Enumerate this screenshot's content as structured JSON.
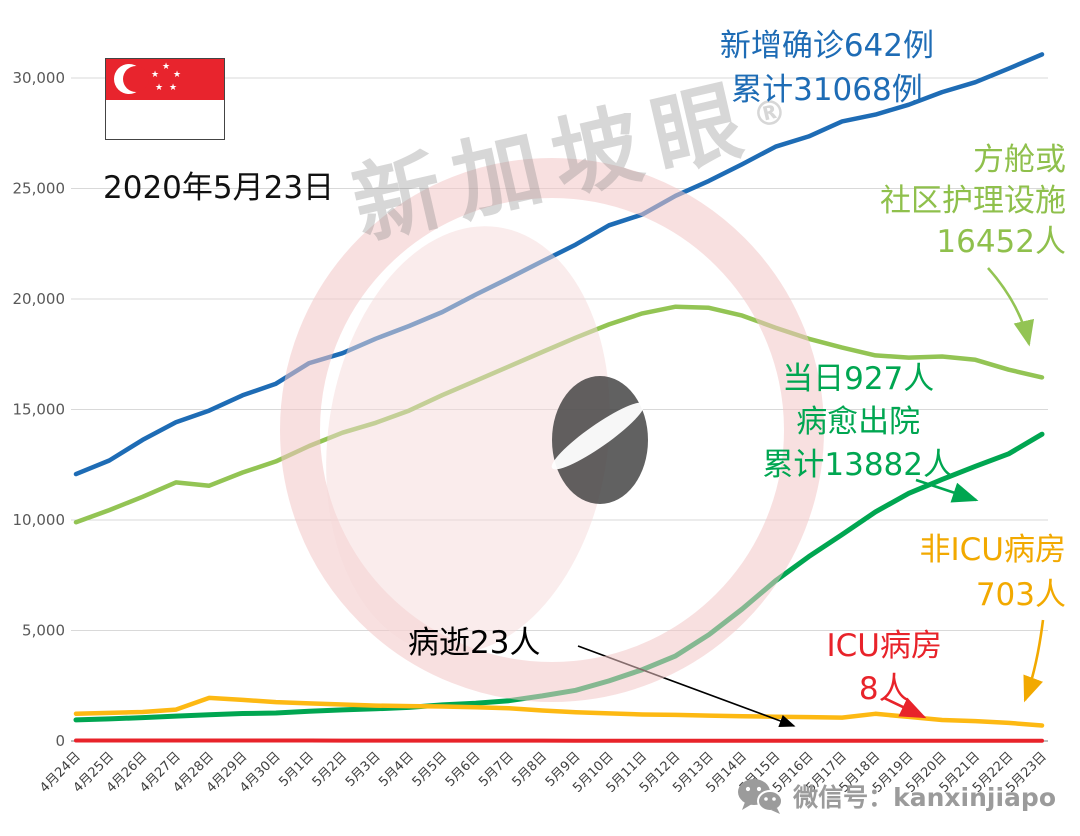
{
  "meta": {
    "date_label": "2020年5月23日",
    "watermark_text": "新加坡眼",
    "watermark_reg": "®",
    "footer_text": "微信号：kanxinjiapo"
  },
  "annotations": {
    "confirmed_line1": "新增确诊642例",
    "confirmed_line2": "累计31068例",
    "community_line1": "方舱或",
    "community_line2": "社区护理设施",
    "community_line3": "16452人",
    "recovered_line1": "当日927人",
    "recovered_line2": "病愈出院",
    "recovered_line3": "累计13882人",
    "non_icu_line1": "非ICU病房",
    "non_icu_line2": "703人",
    "icu_line1": "ICU病房",
    "icu_line2": "8人",
    "deaths_label": "病逝23人"
  },
  "colors": {
    "confirmed": "#1e6cb5",
    "community": "#93c454",
    "recovered": "#00a651",
    "non_icu": "#fdb913",
    "icu": "#e8232a",
    "deaths": "#000000",
    "gridline": "#d9d9d9"
  },
  "chart_data": {
    "type": "line",
    "title": "",
    "xlabel": "",
    "ylabel": "",
    "grid": true,
    "legend_position": "none",
    "ylim": [
      0,
      31500
    ],
    "yticks": [
      0,
      5000,
      10000,
      15000,
      20000,
      25000,
      30000
    ],
    "ytick_labels": [
      "0",
      "5,000",
      "10,000",
      "15,000",
      "20,000",
      "25,000",
      "30,000"
    ],
    "x": [
      "4月24日",
      "4月25日",
      "4月26日",
      "4月27日",
      "4月28日",
      "4月29日",
      "4月30日",
      "5月1日",
      "5月2日",
      "5月3日",
      "5月4日",
      "5月5日",
      "5月6日",
      "5月7日",
      "5月8日",
      "5月9日",
      "5月10日",
      "5月11日",
      "5月12日",
      "5月13日",
      "5月14日",
      "5月15日",
      "5月16日",
      "5月17日",
      "5月18日",
      "5月19日",
      "5月20日",
      "5月21日",
      "5月22日",
      "5月23日"
    ],
    "series": [
      {
        "name": "累计确诊",
        "annotation": "新增确诊642例 累计31068例",
        "color": "#1e6cb5",
        "width": 4.5,
        "values": [
          12075,
          12693,
          13624,
          14423,
          14951,
          15641,
          16169,
          17101,
          17548,
          18205,
          18778,
          19410,
          20198,
          20939,
          21707,
          22460,
          23336,
          23822,
          24671,
          25346,
          26098,
          26891,
          27356,
          28038,
          28343,
          28794,
          29364,
          29812,
          30426,
          31068
        ]
      },
      {
        "name": "方舱或社区护理设施",
        "annotation": "方舱或社区护理设施 16452人",
        "color": "#93c454",
        "width": 4.5,
        "values": [
          9900,
          10450,
          11050,
          11700,
          11550,
          12150,
          12650,
          13350,
          13950,
          14400,
          14950,
          15650,
          16300,
          16950,
          17600,
          18250,
          18850,
          19350,
          19650,
          19600,
          19250,
          18700,
          18200,
          17800,
          17450,
          17350,
          17400,
          17250,
          16800,
          16452
        ]
      },
      {
        "name": "累计病愈出院",
        "annotation": "当日927人病愈出院 累计13882人",
        "color": "#00a651",
        "width": 5,
        "values": [
          956,
          1002,
          1060,
          1128,
          1192,
          1244,
          1268,
          1347,
          1408,
          1457,
          1519,
          1634,
          1712,
          1824,
          2040,
          2296,
          2721,
          3225,
          3851,
          4809,
          5973,
          7248,
          8342,
          9340,
          10365,
          11207,
          11838,
          12432,
          12995,
          13882
        ]
      },
      {
        "name": "非ICU病房",
        "annotation": "非ICU病房 703人",
        "color": "#fdb913",
        "width": 4.5,
        "values": [
          1236,
          1270,
          1310,
          1420,
          1950,
          1860,
          1760,
          1700,
          1650,
          1600,
          1580,
          1560,
          1530,
          1480,
          1380,
          1300,
          1250,
          1200,
          1180,
          1150,
          1120,
          1100,
          1080,
          1060,
          1230,
          1090,
          950,
          900,
          820,
          703
        ]
      },
      {
        "name": "ICU病房",
        "annotation": "ICU病房 8人（病逝23人）",
        "color": "#e8232a",
        "width": 4,
        "values": [
          24,
          24,
          23,
          23,
          22,
          22,
          21,
          21,
          20,
          20,
          19,
          19,
          18,
          17,
          16,
          15,
          14,
          13,
          12,
          11,
          10,
          10,
          9,
          9,
          9,
          8,
          8,
          8,
          8,
          8
        ]
      }
    ]
  }
}
